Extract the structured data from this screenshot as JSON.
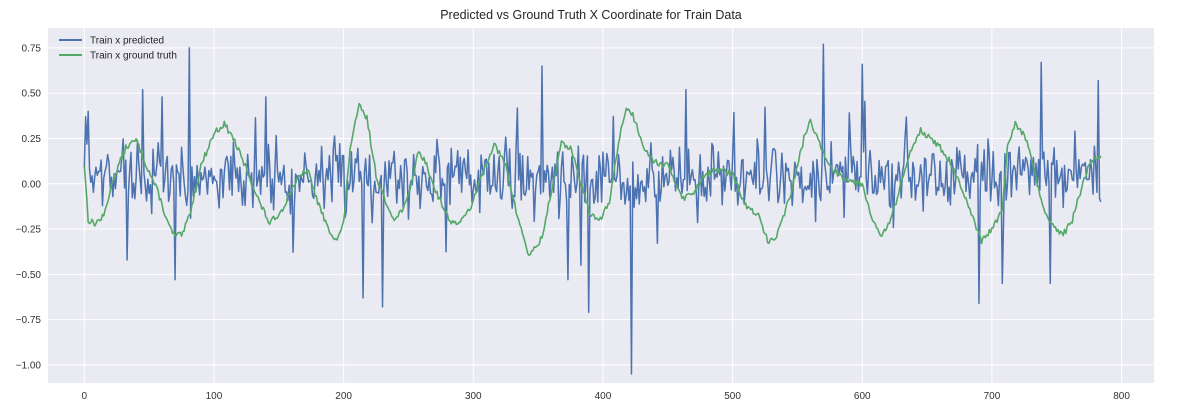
{
  "chart_data": {
    "type": "line",
    "title": "Predicted vs Ground Truth X Coordinate for Train Data",
    "xlabel": "",
    "ylabel": "",
    "xlim": [
      -28,
      825
    ],
    "ylim": [
      -1.1,
      0.86
    ],
    "x_ticks": [
      0,
      100,
      200,
      300,
      400,
      500,
      600,
      700,
      800
    ],
    "x_tick_labels": [
      "0",
      "100",
      "200",
      "300",
      "400",
      "500",
      "600",
      "700",
      "800"
    ],
    "y_ticks": [
      0.75,
      0.5,
      0.25,
      0.0,
      -0.25,
      -0.5,
      -0.75,
      -1.0
    ],
    "y_tick_labels": [
      "0.75",
      "0.50",
      "0.25",
      "0.00",
      "−0.25",
      "−0.50",
      "−0.75",
      "−1.00"
    ],
    "grid": true,
    "legend_position": "top-left",
    "style": {
      "axes_background": "#eaeaf2",
      "grid_color": "#ffffff"
    },
    "series": [
      {
        "name": "Train x predicted",
        "color": "#4c72b0",
        "generator": "noisy",
        "n": 785,
        "seed": 7,
        "amplitude": 0.17,
        "features": [
          {
            "x": 1,
            "y": 0.37
          },
          {
            "x": 3,
            "y": 0.4
          },
          {
            "x": 60,
            "y": 0.48
          },
          {
            "x": 70,
            "y": -0.53
          },
          {
            "x": 81,
            "y": 0.75
          },
          {
            "x": 140,
            "y": 0.48
          },
          {
            "x": 215,
            "y": -0.63
          },
          {
            "x": 230,
            "y": -0.68
          },
          {
            "x": 353,
            "y": 0.65
          },
          {
            "x": 373,
            "y": -0.53
          },
          {
            "x": 389,
            "y": -0.71
          },
          {
            "x": 422,
            "y": -1.05
          },
          {
            "x": 570,
            "y": 0.77
          },
          {
            "x": 600,
            "y": 0.66
          },
          {
            "x": 690,
            "y": -0.66
          },
          {
            "x": 708,
            "y": -0.55
          },
          {
            "x": 738,
            "y": 0.67
          },
          {
            "x": 745,
            "y": -0.55
          },
          {
            "x": 782,
            "y": 0.57
          },
          {
            "x": 784,
            "y": -0.1
          }
        ]
      },
      {
        "name": "Train x ground truth",
        "color": "#55a868",
        "generator": "piecewise",
        "n": 785,
        "seed": 13,
        "points": [
          [
            0,
            0.11
          ],
          [
            3,
            -0.2
          ],
          [
            8,
            -0.22
          ],
          [
            15,
            -0.18
          ],
          [
            22,
            0.02
          ],
          [
            32,
            0.2
          ],
          [
            40,
            0.24
          ],
          [
            48,
            0.1
          ],
          [
            57,
            -0.05
          ],
          [
            65,
            -0.23
          ],
          [
            70,
            -0.29
          ],
          [
            76,
            -0.28
          ],
          [
            82,
            -0.15
          ],
          [
            90,
            0.1
          ],
          [
            100,
            0.28
          ],
          [
            108,
            0.33
          ],
          [
            115,
            0.25
          ],
          [
            125,
            0.08
          ],
          [
            135,
            -0.1
          ],
          [
            143,
            -0.22
          ],
          [
            152,
            -0.15
          ],
          [
            162,
            0.0
          ],
          [
            172,
            0.08
          ],
          [
            180,
            -0.1
          ],
          [
            188,
            -0.25
          ],
          [
            195,
            -0.31
          ],
          [
            200,
            -0.22
          ],
          [
            205,
            0.2
          ],
          [
            212,
            0.43
          ],
          [
            218,
            0.36
          ],
          [
            225,
            0.05
          ],
          [
            232,
            -0.1
          ],
          [
            240,
            -0.2
          ],
          [
            250,
            -0.08
          ],
          [
            257,
            0.17
          ],
          [
            262,
            0.14
          ],
          [
            270,
            -0.02
          ],
          [
            280,
            -0.18
          ],
          [
            285,
            -0.22
          ],
          [
            292,
            -0.2
          ],
          [
            300,
            -0.1
          ],
          [
            308,
            0.08
          ],
          [
            316,
            0.22
          ],
          [
            325,
            0.1
          ],
          [
            333,
            -0.15
          ],
          [
            343,
            -0.4
          ],
          [
            353,
            -0.3
          ],
          [
            360,
            -0.05
          ],
          [
            368,
            0.22
          ],
          [
            375,
            0.2
          ],
          [
            383,
            0.0
          ],
          [
            391,
            -0.18
          ],
          [
            398,
            -0.2
          ],
          [
            405,
            -0.1
          ],
          [
            413,
            0.27
          ],
          [
            418,
            0.42
          ],
          [
            423,
            0.38
          ],
          [
            432,
            0.2
          ],
          [
            440,
            0.12
          ],
          [
            450,
            0.1
          ],
          [
            462,
            -0.08
          ],
          [
            470,
            -0.05
          ],
          [
            478,
            0.05
          ],
          [
            490,
            0.08
          ],
          [
            500,
            0.05
          ],
          [
            510,
            -0.12
          ],
          [
            520,
            -0.18
          ],
          [
            528,
            -0.33
          ],
          [
            535,
            -0.27
          ],
          [
            545,
            -0.05
          ],
          [
            555,
            0.25
          ],
          [
            560,
            0.35
          ],
          [
            568,
            0.2
          ],
          [
            575,
            0.1
          ],
          [
            582,
            0.05
          ],
          [
            590,
            0.02
          ],
          [
            600,
            0.0
          ],
          [
            606,
            -0.15
          ],
          [
            614,
            -0.3
          ],
          [
            622,
            -0.2
          ],
          [
            630,
            0.0
          ],
          [
            638,
            0.2
          ],
          [
            645,
            0.3
          ],
          [
            652,
            0.25
          ],
          [
            660,
            0.2
          ],
          [
            668,
            0.12
          ],
          [
            675,
            0.0
          ],
          [
            683,
            -0.15
          ],
          [
            692,
            -0.32
          ],
          [
            700,
            -0.25
          ],
          [
            708,
            -0.15
          ],
          [
            712,
            0.2
          ],
          [
            718,
            0.33
          ],
          [
            725,
            0.27
          ],
          [
            732,
            0.1
          ],
          [
            740,
            -0.15
          ],
          [
            748,
            -0.25
          ],
          [
            755,
            -0.28
          ],
          [
            762,
            -0.2
          ],
          [
            770,
            0.0
          ],
          [
            776,
            0.12
          ],
          [
            784,
            0.16
          ]
        ]
      }
    ]
  }
}
